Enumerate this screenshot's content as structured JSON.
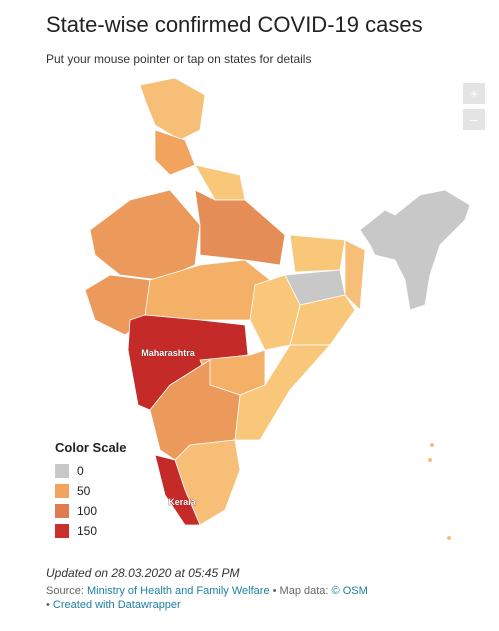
{
  "header": {
    "title": "State-wise confirmed COVID-19 cases",
    "subtitle": "Put your mouse pointer or tap on states for details"
  },
  "zoom": {
    "in": "+",
    "out": "–"
  },
  "map": {
    "labels": [
      "Maharashtra",
      "Kerala"
    ]
  },
  "legend": {
    "title": "Color Scale",
    "items": [
      {
        "value": 0,
        "color": "#c8c8c8"
      },
      {
        "value": 50,
        "color": "#f2a45f"
      },
      {
        "value": 100,
        "color": "#e07a4f"
      },
      {
        "value": 150,
        "color": "#c9302c"
      }
    ]
  },
  "footer": {
    "updated": "Updated on 28.03.2020 at 05:45 PM",
    "source_prefix": "Source:",
    "source_link": "Ministry of Health and Family Welfare",
    "map_prefix": "• Map data:",
    "map_link": "© OSM",
    "credit_prefix": "•",
    "credit_link": "Created with Datawrapper"
  }
}
